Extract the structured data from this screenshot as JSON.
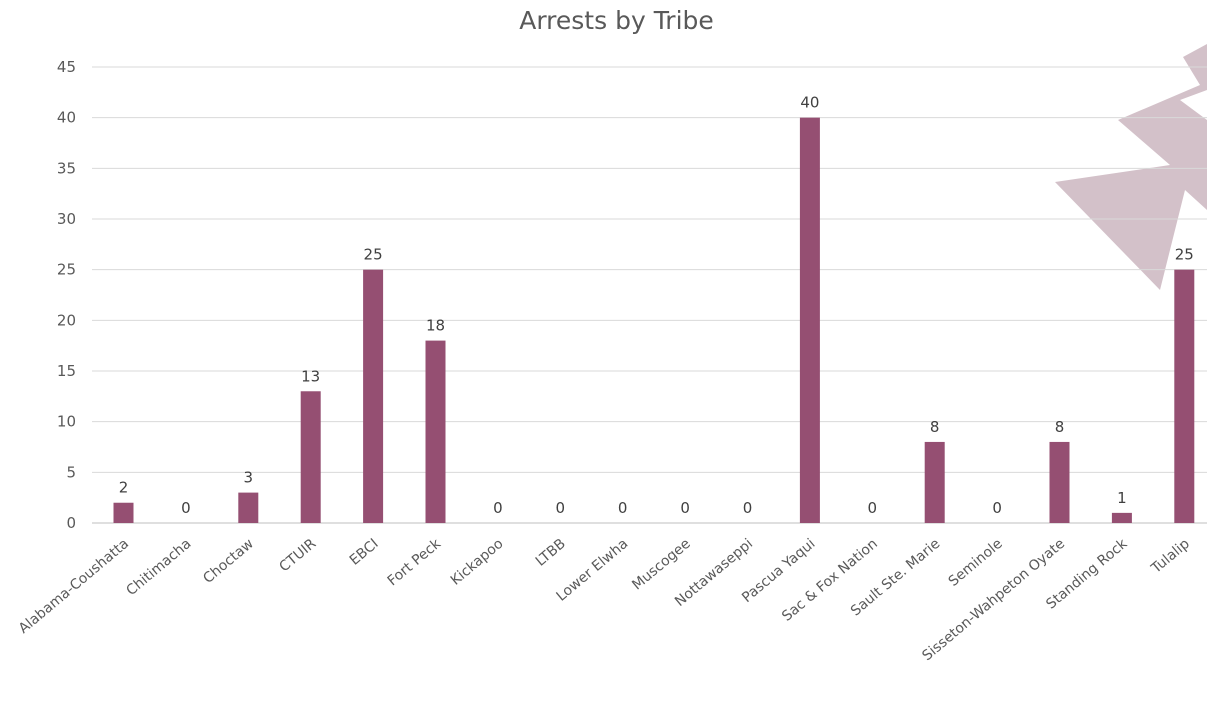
{
  "chart_data": {
    "type": "bar",
    "title": "Arrests by Tribe",
    "xlabel": "",
    "ylabel": "",
    "ylim": [
      0,
      45
    ],
    "yticks": [
      0,
      5,
      10,
      15,
      20,
      25,
      30,
      35,
      40,
      45
    ],
    "grid": true,
    "legend": "none",
    "bar_color": "#954F72",
    "decoration_color": "#D3C1C9",
    "categories": [
      "Alabama-Coushatta",
      "Chitimacha",
      "Choctaw",
      "CTUIR",
      "EBCI",
      "Fort Peck",
      "Kickapoo",
      "LTBB",
      "Lower Elwha",
      "Muscogee",
      "Nottawaseppi",
      "Pascua Yaqui",
      "Sac & Fox Nation",
      "Sault Ste. Marie",
      "Seminole",
      "Sisseton-Wahpeton Oyate",
      "Standing Rock",
      "Tulalip"
    ],
    "values": [
      2,
      0,
      3,
      13,
      25,
      18,
      0,
      0,
      0,
      0,
      0,
      40,
      0,
      8,
      0,
      8,
      1,
      25
    ],
    "data_labels": true
  }
}
